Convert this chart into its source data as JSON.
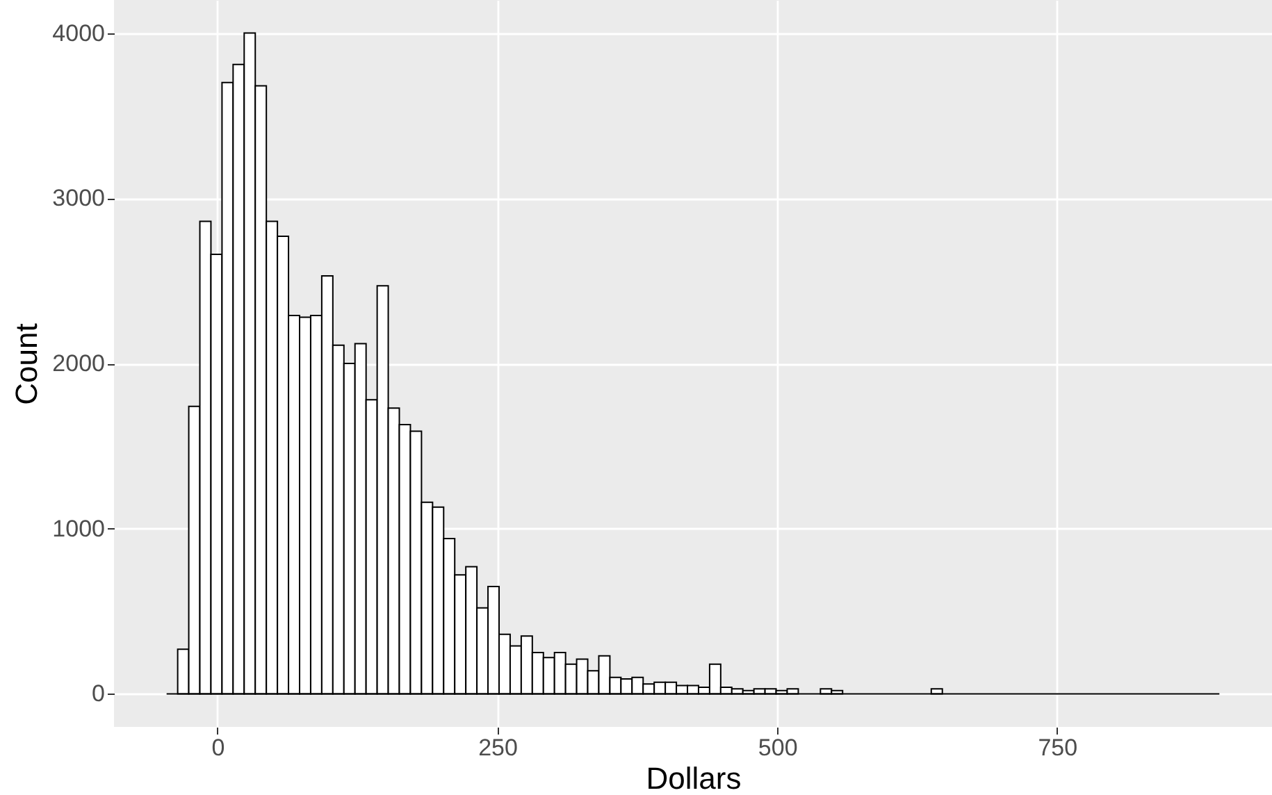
{
  "chart_data": {
    "type": "histogram",
    "xlabel": "Dollars",
    "ylabel": "Count",
    "color": "#ffffff",
    "bins": [
      -45.5,
      -35.6,
      -25.7,
      -15.8,
      -5.9,
      4,
      13.9,
      23.8,
      33.7,
      43.6,
      53.5,
      63.4,
      73.3,
      83.2,
      93.1,
      103,
      112.9,
      122.8,
      132.7,
      142.6,
      152.5,
      162.4,
      172.3,
      182.2,
      192.1,
      202,
      211.9,
      221.8,
      231.7,
      241.6,
      251.5,
      261.4,
      271.3,
      281.2,
      291.1,
      301,
      310.9,
      320.8,
      330.7,
      340.6,
      350.5,
      360.4,
      370.3,
      380.2,
      390.1,
      400,
      409.9,
      419.8,
      429.7,
      439.6,
      449.5,
      459.4,
      469.3,
      479.2,
      489.1,
      499,
      508.9,
      518.8,
      528.7,
      538.6,
      548.5,
      558.4,
      568.3,
      578.2,
      588.1,
      598,
      607.9,
      617.8,
      627.7,
      637.6,
      647.5,
      657.4,
      667.3,
      677.2,
      687.1,
      697,
      706.9,
      716.8,
      726.7,
      736.6,
      746.5,
      756.4,
      766.3,
      776.2,
      786.1,
      796,
      805.9,
      815.8,
      825.7,
      835.6,
      845.5,
      855.4,
      865.3,
      875.2,
      885.1,
      895
    ],
    "values": [
      0,
      270,
      1740,
      2860,
      2660,
      3700,
      3810,
      4000,
      3680,
      2860,
      2770,
      2290,
      2280,
      2290,
      2530,
      2110,
      2000,
      2120,
      1780,
      2470,
      1730,
      1630,
      1590,
      1160,
      1130,
      940,
      720,
      770,
      520,
      650,
      360,
      290,
      350,
      250,
      220,
      250,
      180,
      210,
      140,
      230,
      100,
      90,
      100,
      60,
      70,
      70,
      50,
      50,
      40,
      180,
      40,
      30,
      20,
      30,
      30,
      20,
      30,
      null,
      null,
      30,
      20,
      null,
      0,
      0,
      null,
      null,
      0,
      0,
      0,
      30,
      0,
      0,
      null,
      0,
      0,
      null,
      0,
      0,
      0,
      0,
      0,
      0,
      0,
      0,
      0,
      0,
      0,
      0,
      0,
      0,
      0,
      0,
      0,
      0,
      0
    ],
    "xlim": [
      -92.5,
      942
    ],
    "xticks": [
      0,
      250,
      500,
      750
    ],
    "ylim": [
      -200,
      4200
    ],
    "yticks": [
      0,
      1000,
      2000,
      3000,
      4000
    ],
    "grid": true
  }
}
